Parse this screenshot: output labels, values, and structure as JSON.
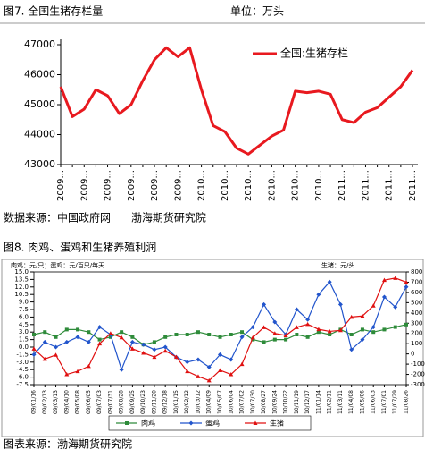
{
  "chart_data": [
    {
      "type": "line",
      "title": "图7. 全国生猪存栏量",
      "unit_label": "单位：万头",
      "categories": [
        "2009...",
        null,
        "2009...",
        null,
        "2009...",
        null,
        "2009...",
        null,
        "2009...",
        null,
        "2009...",
        null,
        "2010...",
        null,
        "2010...",
        null,
        "2010...",
        null,
        "2010...",
        null,
        "2010...",
        null,
        "2010...",
        null,
        "2011...",
        null,
        "2011...",
        null,
        "2011...",
        null,
        "2011..."
      ],
      "series": [
        {
          "name": "全国:生猪存栏",
          "color": "#e8191f",
          "values": [
            45600,
            44600,
            44850,
            45500,
            45300,
            44700,
            45000,
            45800,
            46500,
            46900,
            46600,
            46900,
            45500,
            44300,
            44100,
            43550,
            43350,
            43650,
            43950,
            44150,
            45450,
            45400,
            45450,
            45350,
            44500,
            44400,
            44750,
            44900,
            45250,
            45600,
            46150
          ]
        }
      ],
      "ylim": [
        43000,
        47000
      ],
      "yticks": [
        43000,
        44000,
        45000,
        46000,
        47000
      ],
      "grid": false,
      "legend": "top-right"
    },
    {
      "type": "line",
      "title": "图8. 肉鸡、蛋鸡和生猪养殖利润",
      "y_label": "肉鸡：元/只；蛋鸡：元/百只/每天",
      "y2_label": "生猪：元/头",
      "categories": [
        "09/01/16",
        "09/02/13",
        "09/03/13",
        "09/04/10",
        "09/05/08",
        "09/06/05",
        "09/07/03",
        "09/07/31",
        "09/08/28",
        "09/09/25",
        "09/10/23",
        "09/11/20",
        "09/12/18",
        "10/01/15",
        "10/02/12",
        "10/03/12",
        "10/04/09",
        "10/05/07",
        "10/06/04",
        "10/07/02",
        "10/07/30",
        "10/08/27",
        "10/09/24",
        "10/10/22",
        "10/11/19",
        "10/12/17",
        "11/01/14",
        "11/02/11",
        "11/03/11",
        "11/04/08",
        "11/05/06",
        "11/06/03",
        "11/07/01",
        "11/07/29",
        "11/08/26"
      ],
      "series": [
        {
          "name": "肉鸡",
          "color": "#2e8b3a",
          "marker": "square",
          "values": [
            2.5,
            3.0,
            2.0,
            3.5,
            3.5,
            3.0,
            1.5,
            2.0,
            3.0,
            2.0,
            0.5,
            1.0,
            2.0,
            2.5,
            2.5,
            3.0,
            2.5,
            2.0,
            2.5,
            3.0,
            1.5,
            1.0,
            1.5,
            1.5,
            2.5,
            2.0,
            3.0,
            2.5,
            3.5,
            2.5,
            3.5,
            3.0,
            3.5,
            4.0,
            4.5
          ]
        },
        {
          "name": "蛋鸡",
          "color": "#2255cc",
          "marker": "diamond",
          "values": [
            -1.5,
            1.0,
            0.0,
            1.0,
            2.0,
            1.0,
            4.0,
            2.5,
            -4.5,
            1.0,
            0.5,
            -0.5,
            0.0,
            -2.0,
            -3.0,
            -2.5,
            -4.0,
            -1.5,
            -2.5,
            2.0,
            4.0,
            8.5,
            5.0,
            2.5,
            7.5,
            5.5,
            10.5,
            13.0,
            8.5,
            -0.5,
            1.5,
            4.0,
            10.0,
            8.0,
            12.0
          ]
        },
        {
          "name": "生猪",
          "color": "#e01010",
          "marker": "triangle",
          "axis": "y2",
          "values": [
            50,
            -50,
            -10,
            -200,
            -170,
            -120,
            100,
            200,
            160,
            50,
            10,
            -30,
            30,
            -30,
            -170,
            -220,
            -260,
            -160,
            -200,
            -100,
            160,
            260,
            200,
            180,
            260,
            290,
            240,
            220,
            230,
            360,
            370,
            470,
            720,
            740,
            700
          ]
        }
      ],
      "ylim": [
        -7.5,
        15
      ],
      "yticks": [
        {
          "value": -7.5,
          "label": "-7.5"
        },
        {
          "value": -6,
          "label": "-6.0"
        },
        -4.5,
        {
          "value": -3,
          "label": "-3.0"
        },
        -1.5,
        {
          "value": 0,
          "label": "0.0"
        },
        1.5,
        {
          "value": 3,
          "label": "3.0"
        },
        4.5,
        {
          "value": 6,
          "label": "6.0"
        },
        7.5,
        {
          "value": 9,
          "label": "9.0"
        },
        10.5,
        {
          "value": 12,
          "label": "12.0"
        },
        13.5,
        {
          "value": 15,
          "label": "15.0"
        }
      ],
      "y2lim": [
        -300,
        800
      ],
      "y2ticks": [
        -300,
        -200,
        -100,
        0,
        100,
        200,
        300,
        400,
        500,
        600,
        700,
        800
      ],
      "grid": false,
      "legend": "bottom"
    }
  ],
  "source_1": "数据来源：中国政府网      渤海期货研究院",
  "source_2": "图表来源：渤海期货研究院"
}
